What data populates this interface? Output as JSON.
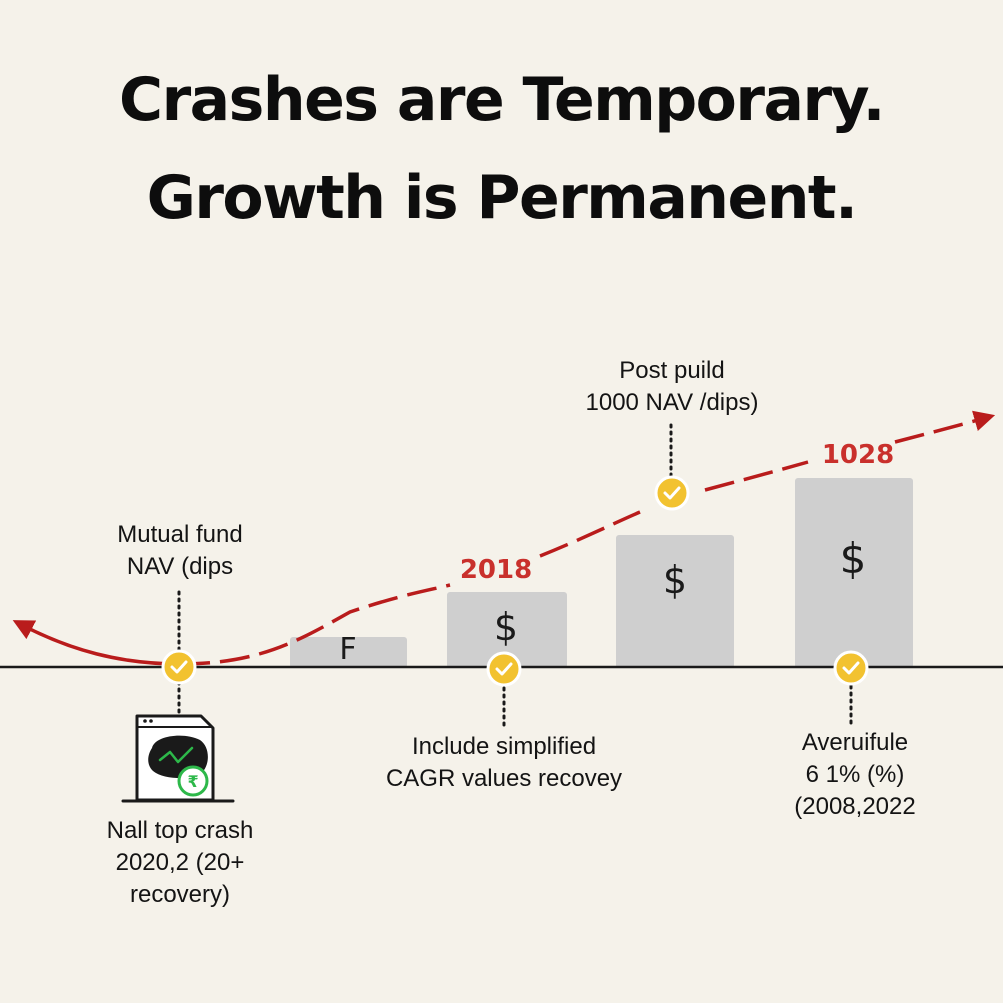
{
  "title": {
    "line1": "Crashes are Temporary.",
    "line2": "Growth is Permanent."
  },
  "callouts": {
    "left_top": [
      "Mutual fund",
      "NAV (dips"
    ],
    "right_top": [
      "Post puild",
      "1000 NAV /dips)"
    ],
    "left_bottom": [
      "Nall top crash",
      "2020,2 (20+",
      "recovery)"
    ],
    "middle_bottom": [
      "Include simplified",
      "CAGR values recovey"
    ],
    "right_bottom": [
      "Averuifule",
      "6 1% (%)",
      "(2008,2022"
    ]
  },
  "year_labels": {
    "mid": "2018",
    "right": "1028"
  },
  "bars": [
    {
      "label": "F",
      "level": 0.17
    },
    {
      "label": "$",
      "level": 0.41
    },
    {
      "label": "$",
      "level": 0.73
    },
    {
      "label": "$",
      "level": 1.0
    }
  ],
  "icons": {
    "checkpoints": "check-circle-icon",
    "chart_window": "browser-chart-icon",
    "rupee_badge": "rupee-coin-icon"
  },
  "colors": {
    "background": "#f5f2ea",
    "trend": "#b91c1c",
    "bar": "#cfcfcf",
    "check": "#f2c230",
    "year": "#c9302c"
  }
}
